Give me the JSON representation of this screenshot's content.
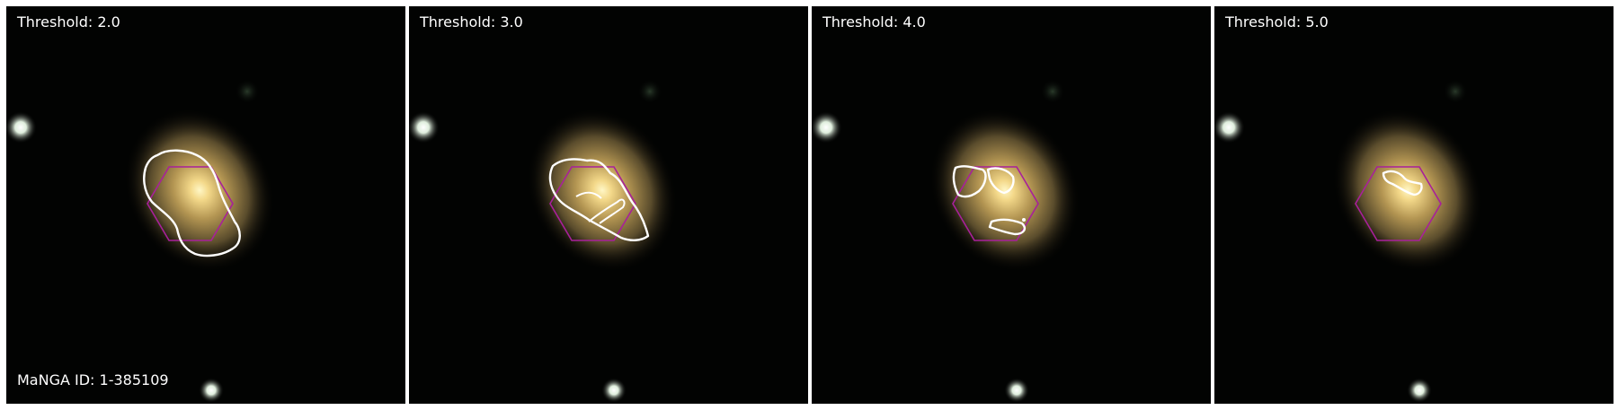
{
  "panels": [
    {
      "label": "Threshold: 2.0",
      "id_label": "MaNGA ID: 1-385109"
    },
    {
      "label": "Threshold: 3.0"
    },
    {
      "label": "Threshold: 4.0"
    },
    {
      "label": "Threshold: 5.0"
    }
  ],
  "colors": {
    "hexagon": "#a8209a",
    "contour": "#ffffff",
    "background": "#000000"
  }
}
